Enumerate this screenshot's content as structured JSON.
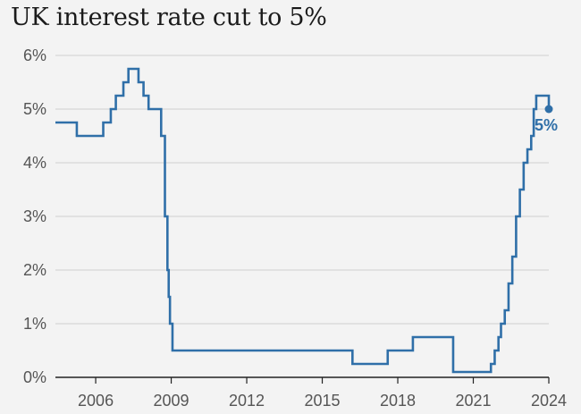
{
  "chart_data": {
    "type": "line",
    "title": "UK interest rate cut to 5%",
    "xlabel": "",
    "ylabel": "",
    "xlim": [
      2004.4,
      2024.0
    ],
    "ylim": [
      0,
      6
    ],
    "x_ticks": [
      {
        "value": 2006,
        "label": "2006"
      },
      {
        "value": 2009,
        "label": "2009"
      },
      {
        "value": 2012,
        "label": "2012"
      },
      {
        "value": 2015,
        "label": "2015"
      },
      {
        "value": 2018,
        "label": "2018"
      },
      {
        "value": 2021,
        "label": "2021"
      },
      {
        "value": 2024,
        "label": "2024"
      }
    ],
    "y_ticks": [
      {
        "value": 0,
        "label": "0%"
      },
      {
        "value": 1,
        "label": "1%"
      },
      {
        "value": 2,
        "label": "2%"
      },
      {
        "value": 3,
        "label": "3%"
      },
      {
        "value": 4,
        "label": "4%"
      },
      {
        "value": 5,
        "label": "5%"
      },
      {
        "value": 6,
        "label": "6%"
      }
    ],
    "grid": "horizontal",
    "line_color": "#2f6fa8",
    "step": true,
    "series": [
      {
        "points": [
          [
            2004.4,
            4.75
          ],
          [
            2005.25,
            4.5
          ],
          [
            2006.3,
            4.75
          ],
          [
            2006.6,
            5.0
          ],
          [
            2006.8,
            5.25
          ],
          [
            2007.1,
            5.5
          ],
          [
            2007.3,
            5.75
          ],
          [
            2007.7,
            5.5
          ],
          [
            2007.9,
            5.25
          ],
          [
            2008.1,
            5.0
          ],
          [
            2008.6,
            4.5
          ],
          [
            2008.75,
            3.0
          ],
          [
            2008.85,
            2.0
          ],
          [
            2008.9,
            1.5
          ],
          [
            2008.95,
            1.0
          ],
          [
            2009.05,
            0.5
          ],
          [
            2016.2,
            0.25
          ],
          [
            2017.6,
            0.5
          ],
          [
            2018.6,
            0.75
          ],
          [
            2020.2,
            0.1
          ],
          [
            2021.7,
            0.25
          ],
          [
            2021.85,
            0.5
          ],
          [
            2022.0,
            0.75
          ],
          [
            2022.1,
            1.0
          ],
          [
            2022.25,
            1.25
          ],
          [
            2022.4,
            1.75
          ],
          [
            2022.55,
            2.25
          ],
          [
            2022.7,
            3.0
          ],
          [
            2022.85,
            3.5
          ],
          [
            2023.0,
            4.0
          ],
          [
            2023.15,
            4.25
          ],
          [
            2023.3,
            4.5
          ],
          [
            2023.4,
            5.0
          ],
          [
            2023.5,
            5.25
          ],
          [
            2024.0,
            5.0
          ]
        ]
      }
    ],
    "end_point": {
      "x": 2024.0,
      "y": 5.0,
      "label": "5%"
    }
  }
}
